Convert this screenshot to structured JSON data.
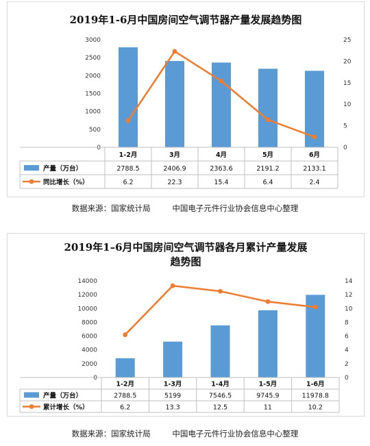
{
  "chart_data": [
    {
      "type": "bar+line",
      "title": "2019年1-6月中国房间空气调节器产量发展趋势图",
      "categories": [
        "1-2月",
        "3月",
        "4月",
        "5月",
        "6月"
      ],
      "series": [
        {
          "name": "产量（万台）",
          "type": "bar",
          "axis": "left",
          "color": "#5B9BD5",
          "values": [
            2788.5,
            2406.9,
            2363.6,
            2191.2,
            2133.1
          ],
          "labels": [
            "2788.5",
            "2406.9",
            "2363.6",
            "2191.2",
            "2133.1"
          ]
        },
        {
          "name": "同比增长（%）",
          "type": "line",
          "axis": "right",
          "color": "#ED7D31",
          "values": [
            6.2,
            22.3,
            15.4,
            6.4,
            2.4
          ],
          "labels": [
            "6.2",
            "22.3",
            "15.4",
            "6.4",
            "2.4"
          ]
        }
      ],
      "y_left": {
        "min": 0,
        "max": 3000,
        "step": 500
      },
      "y_right": {
        "min": 0,
        "max": 25,
        "step": 5
      },
      "data_table": true,
      "grid": false
    },
    {
      "type": "bar+line",
      "title": "2019年1–6月中国房间空气调节器各月累计产量发展趋势图",
      "title_lines": [
        "2019年1–6月中国房间空气调节器各月累计产量发展",
        "趋势图"
      ],
      "categories": [
        "1-2月",
        "1-3月",
        "1-4月",
        "1-5月",
        "1-6月"
      ],
      "series": [
        {
          "name": "产量（万台）",
          "type": "bar",
          "axis": "left",
          "color": "#5B9BD5",
          "values": [
            2788.5,
            5199,
            7546.5,
            9745.9,
            11978.8
          ],
          "labels": [
            "2788.5",
            "5199",
            "7546.5",
            "9745.9",
            "11978.8"
          ]
        },
        {
          "name": "累计增长（%）",
          "type": "line",
          "axis": "right",
          "color": "#ED7D31",
          "values": [
            6.2,
            13.3,
            12.5,
            11,
            10.2
          ],
          "labels": [
            "6.2",
            "13.3",
            "12.5",
            "11",
            "10.2"
          ]
        }
      ],
      "y_left": {
        "min": 0,
        "max": 14000,
        "step": 2000
      },
      "y_right": {
        "min": 0,
        "max": 14,
        "step": 2
      },
      "data_table": true,
      "grid": false
    }
  ],
  "sources": [
    {
      "label": "数据来源：国家统计局",
      "org": "中国电子元件行业协会信息中心整理"
    },
    {
      "label": "数据来源：国家统计局",
      "org": "中国电子元件行业协会信息中心整理"
    }
  ]
}
